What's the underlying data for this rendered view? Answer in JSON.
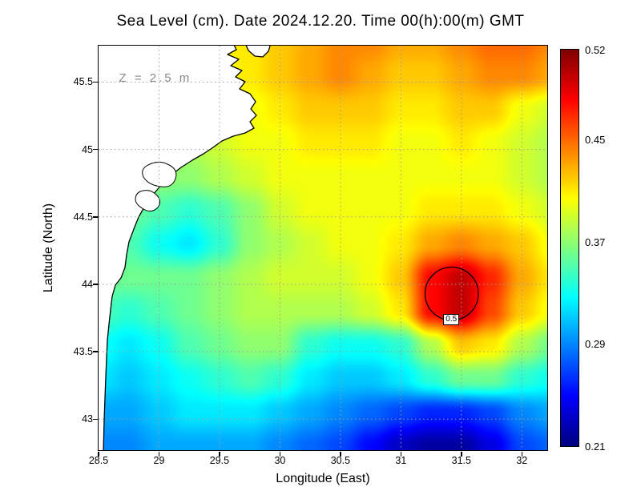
{
  "chart_data": {
    "type": "heatmap",
    "title": "Sea Level (cm). Date 2024.12.20. Time 00(h):00(m) GMT",
    "xlabel": "Longitude (East)",
    "ylabel": "Latitude (North)",
    "annotation": "Z = 2.5 m",
    "x_range": [
      28.5,
      32.21
    ],
    "y_range": [
      42.77,
      45.77
    ],
    "x_ticks": [
      28.5,
      29,
      29.5,
      30,
      30.5,
      31,
      31.5,
      32
    ],
    "x_tick_labels": [
      "28.5",
      "29",
      "29.5",
      "30",
      "30.5",
      "31",
      "31.5",
      "32"
    ],
    "y_ticks": [
      43,
      43.5,
      44,
      44.5,
      45,
      45.5
    ],
    "y_tick_labels": [
      "43",
      "43.5",
      "44",
      "44.5",
      "45",
      "45.5"
    ],
    "grid_on": true,
    "colorbar": {
      "min": 0.21,
      "max": 0.52,
      "colormap": "jet",
      "tick_values": [
        0.52,
        0.45,
        0.37,
        0.29,
        0.21
      ],
      "tick_labels": [
        "0.52",
        "0.45",
        "0.37",
        "0.29",
        "0.21"
      ]
    },
    "contour": {
      "level": 0.5,
      "label": "0.5",
      "center_lon": 31.42,
      "center_lat": 43.93,
      "radius_deg": 0.22
    },
    "grid": {
      "lons": [
        28.5,
        28.75,
        29.0,
        29.25,
        29.5,
        29.75,
        30.0,
        30.25,
        30.5,
        30.75,
        31.0,
        31.25,
        31.5,
        31.75,
        32.0,
        32.25
      ],
      "lats": [
        45.8,
        45.55,
        45.3,
        45.05,
        44.8,
        44.55,
        44.3,
        44.05,
        43.8,
        43.55,
        43.3,
        43.05,
        42.8
      ],
      "values": [
        [
          0.4,
          0.4,
          0.4,
          0.4,
          0.41,
          0.41,
          0.42,
          0.43,
          0.44,
          0.44,
          0.43,
          0.43,
          0.44,
          0.45,
          0.45,
          0.44
        ],
        [
          0.4,
          0.4,
          0.4,
          0.4,
          0.4,
          0.41,
          0.42,
          0.43,
          0.44,
          0.43,
          0.42,
          0.42,
          0.43,
          0.44,
          0.44,
          0.43
        ],
        [
          0.39,
          0.39,
          0.39,
          0.39,
          0.4,
          0.4,
          0.41,
          0.42,
          0.42,
          0.42,
          0.41,
          0.41,
          0.42,
          0.42,
          0.4,
          0.39
        ],
        [
          0.38,
          0.38,
          0.38,
          0.38,
          0.39,
          0.4,
          0.4,
          0.41,
          0.41,
          0.41,
          0.4,
          0.4,
          0.41,
          0.4,
          0.39,
          0.38
        ],
        [
          0.37,
          0.37,
          0.37,
          0.37,
          0.38,
          0.39,
          0.4,
          0.4,
          0.4,
          0.4,
          0.4,
          0.4,
          0.4,
          0.4,
          0.39,
          0.38
        ],
        [
          0.36,
          0.36,
          0.35,
          0.34,
          0.35,
          0.37,
          0.39,
          0.4,
          0.4,
          0.4,
          0.4,
          0.41,
          0.41,
          0.41,
          0.4,
          0.39
        ],
        [
          0.35,
          0.35,
          0.33,
          0.32,
          0.34,
          0.37,
          0.38,
          0.39,
          0.4,
          0.4,
          0.41,
          0.43,
          0.44,
          0.43,
          0.42,
          0.4
        ],
        [
          0.36,
          0.36,
          0.36,
          0.36,
          0.37,
          0.38,
          0.39,
          0.39,
          0.39,
          0.4,
          0.42,
          0.48,
          0.5,
          0.47,
          0.43,
          0.41
        ],
        [
          0.35,
          0.34,
          0.35,
          0.36,
          0.37,
          0.38,
          0.38,
          0.38,
          0.38,
          0.39,
          0.41,
          0.48,
          0.5,
          0.46,
          0.42,
          0.4
        ],
        [
          0.33,
          0.32,
          0.33,
          0.35,
          0.36,
          0.37,
          0.37,
          0.34,
          0.33,
          0.33,
          0.34,
          0.38,
          0.42,
          0.41,
          0.38,
          0.36
        ],
        [
          0.32,
          0.31,
          0.32,
          0.33,
          0.34,
          0.35,
          0.34,
          0.32,
          0.31,
          0.31,
          0.32,
          0.34,
          0.36,
          0.36,
          0.34,
          0.33
        ],
        [
          0.3,
          0.3,
          0.31,
          0.32,
          0.32,
          0.32,
          0.31,
          0.3,
          0.29,
          0.28,
          0.27,
          0.26,
          0.26,
          0.27,
          0.29,
          0.3
        ],
        [
          0.29,
          0.29,
          0.3,
          0.3,
          0.3,
          0.3,
          0.29,
          0.28,
          0.27,
          0.25,
          0.23,
          0.22,
          0.22,
          0.24,
          0.27,
          0.28
        ]
      ]
    }
  }
}
